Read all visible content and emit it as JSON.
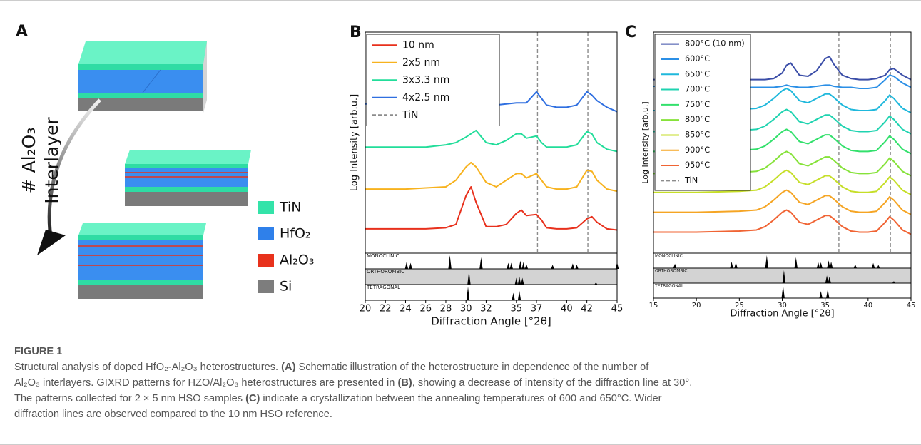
{
  "panel_a": {
    "label": "A",
    "arrow_label": [
      "# Al₂O₃",
      "Interlayer"
    ],
    "legend": [
      {
        "name": "TiN",
        "color": "#33e3a9"
      },
      {
        "name": "HfO₂",
        "color": "#2f80ea"
      },
      {
        "name": "Al₂O₃",
        "color": "#e8321c"
      },
      {
        "name": "Si",
        "color": "#7d7d7d"
      }
    ]
  },
  "chart_data": [
    {
      "type": "line",
      "panel_label": "B",
      "xlabel": "Diffraction Angle [°2θ]",
      "ylabel": "Log Intensity [arb.u.]",
      "xlim": [
        20,
        45
      ],
      "ylim": [
        0,
        10
      ],
      "xticks": [
        20,
        22,
        24,
        26,
        28,
        30,
        32,
        35,
        37,
        40,
        42,
        45
      ],
      "legend": "upper left",
      "x": [
        20,
        22,
        24,
        26,
        28,
        29,
        30,
        30.5,
        31,
        32,
        33,
        34,
        35,
        35.5,
        36,
        37,
        37.5,
        38,
        39,
        40,
        41,
        42,
        42.5,
        43,
        44,
        45
      ],
      "series": [
        {
          "name": "10 nm",
          "color": "#e8301c",
          "values": [
            1.1,
            1.1,
            1.1,
            1.1,
            1.15,
            1.3,
            2.6,
            3.0,
            2.3,
            1.2,
            1.2,
            1.3,
            1.8,
            1.95,
            1.7,
            1.75,
            1.5,
            1.15,
            1.1,
            1.1,
            1.15,
            1.55,
            1.65,
            1.4,
            1.1,
            1.05
          ]
        },
        {
          "name": "2x5 nm",
          "color": "#f7b21e",
          "values": [
            2.9,
            2.9,
            2.9,
            2.95,
            3.0,
            3.3,
            3.9,
            4.1,
            3.9,
            3.2,
            3.0,
            3.3,
            3.6,
            3.6,
            3.4,
            3.6,
            3.3,
            3.0,
            2.9,
            2.9,
            3.0,
            3.75,
            3.7,
            3.3,
            2.9,
            2.8
          ]
        },
        {
          "name": "3x3.3 nm",
          "color": "#22dd9a",
          "values": [
            4.8,
            4.8,
            4.8,
            4.8,
            4.9,
            5.0,
            5.25,
            5.4,
            5.55,
            5.0,
            4.9,
            5.1,
            5.4,
            5.4,
            5.2,
            5.3,
            5.0,
            4.8,
            4.8,
            4.8,
            4.9,
            5.5,
            5.4,
            5.0,
            4.7,
            4.6
          ]
        },
        {
          "name": "4x2.5 nm",
          "color": "#2f6fe0",
          "values": [
            6.75,
            6.75,
            6.75,
            6.75,
            6.75,
            6.75,
            6.75,
            6.75,
            6.75,
            6.75,
            6.7,
            6.75,
            6.8,
            6.8,
            6.8,
            7.3,
            7.0,
            6.7,
            6.6,
            6.6,
            6.7,
            7.3,
            7.15,
            6.9,
            6.6,
            6.4
          ]
        }
      ],
      "vlines": {
        "name": "TiN",
        "color": "#8c8c8c",
        "values": [
          37.1,
          42.1
        ]
      },
      "reference_patterns": [
        {
          "name": "MONOCLINIC",
          "positions": [
            24.1,
            24.5,
            28.4,
            31.5,
            34.2,
            34.5,
            35.4,
            35.7,
            36.0,
            38.6,
            40.6,
            41.0,
            45.0
          ],
          "heights": [
            0.5,
            0.45,
            1.0,
            0.85,
            0.45,
            0.45,
            0.6,
            0.5,
            0.35,
            0.3,
            0.4,
            0.3,
            0.5
          ]
        },
        {
          "name": "ORTHOROMBIC",
          "background": "#d3d3d3",
          "positions": [
            30.3,
            35.0,
            35.3,
            35.6,
            42.9
          ],
          "heights": [
            1.0,
            0.5,
            0.6,
            0.5,
            0.15
          ]
        },
        {
          "name": "TETRAGONAL",
          "positions": [
            30.2,
            34.7,
            35.3
          ],
          "heights": [
            1.0,
            0.55,
            0.7
          ]
        }
      ]
    },
    {
      "type": "line",
      "panel_label": "C",
      "xlabel": "Diffraction Angle [°2θ]",
      "ylabel": "Log Intensity [arb.u.]",
      "xlim": [
        15,
        45
      ],
      "ylim": [
        0,
        10
      ],
      "xticks": [
        15,
        20,
        25,
        30,
        35,
        40,
        45
      ],
      "legend": "upper left",
      "x": [
        15,
        20,
        25,
        27,
        28,
        29,
        30,
        30.5,
        31,
        32,
        33,
        34,
        35,
        35.5,
        36,
        37,
        38,
        39,
        40,
        41,
        42,
        42.5,
        43,
        44,
        45
      ],
      "series": [
        {
          "name": "800°C (10 nm)",
          "color": "#3b4ea8",
          "values": [
            7.85,
            7.85,
            7.85,
            7.85,
            7.85,
            7.9,
            8.15,
            8.5,
            8.6,
            8.05,
            8.0,
            8.25,
            8.8,
            8.9,
            8.55,
            8.05,
            7.9,
            7.85,
            7.85,
            7.9,
            8.05,
            8.3,
            8.35,
            8.05,
            7.85
          ]
        },
        {
          "name": "600°C",
          "color": "#2b8fe6",
          "values": [
            7.55,
            7.5,
            7.5,
            7.5,
            7.5,
            7.5,
            7.55,
            7.6,
            7.55,
            7.5,
            7.5,
            7.55,
            7.6,
            7.6,
            7.55,
            7.5,
            7.5,
            7.45,
            7.45,
            7.5,
            7.85,
            8.05,
            8.0,
            7.7,
            7.5
          ]
        },
        {
          "name": "650°C",
          "color": "#1fb8dc",
          "values": [
            6.45,
            6.45,
            6.5,
            6.55,
            6.7,
            7.0,
            7.35,
            7.45,
            7.35,
            6.9,
            6.8,
            7.0,
            7.2,
            7.2,
            7.05,
            6.7,
            6.5,
            6.45,
            6.45,
            6.5,
            6.9,
            7.15,
            7.0,
            6.55,
            6.35
          ]
        },
        {
          "name": "700°C",
          "color": "#1fd3b0",
          "values": [
            5.5,
            5.5,
            5.55,
            5.6,
            5.75,
            6.05,
            6.4,
            6.5,
            6.4,
            5.95,
            5.85,
            6.05,
            6.25,
            6.25,
            6.1,
            5.75,
            5.55,
            5.5,
            5.5,
            5.55,
            5.95,
            6.2,
            6.05,
            5.6,
            5.4
          ]
        },
        {
          "name": "750°C",
          "color": "#33e06c",
          "values": [
            4.6,
            4.6,
            4.65,
            4.7,
            4.85,
            5.15,
            5.5,
            5.6,
            5.5,
            5.05,
            4.95,
            5.15,
            5.35,
            5.35,
            5.2,
            4.85,
            4.65,
            4.6,
            4.6,
            4.65,
            5.05,
            5.3,
            5.15,
            4.7,
            4.5
          ]
        },
        {
          "name": "800°C",
          "color": "#86e23a",
          "values": [
            3.6,
            3.6,
            3.65,
            3.7,
            3.85,
            4.15,
            4.5,
            4.6,
            4.5,
            4.05,
            3.95,
            4.15,
            4.35,
            4.35,
            4.2,
            3.85,
            3.65,
            3.6,
            3.6,
            3.65,
            4.05,
            4.3,
            4.15,
            3.7,
            3.5
          ]
        },
        {
          "name": "850°C",
          "color": "#c6de28",
          "values": [
            2.75,
            2.75,
            2.8,
            2.85,
            3.0,
            3.3,
            3.65,
            3.75,
            3.65,
            3.2,
            3.1,
            3.3,
            3.5,
            3.5,
            3.35,
            3.0,
            2.8,
            2.75,
            2.75,
            2.8,
            3.2,
            3.45,
            3.3,
            2.85,
            2.65
          ]
        },
        {
          "name": "900°C",
          "color": "#f5a524",
          "values": [
            1.85,
            1.85,
            1.9,
            1.95,
            2.1,
            2.4,
            2.75,
            2.85,
            2.75,
            2.3,
            2.2,
            2.4,
            2.6,
            2.6,
            2.45,
            2.1,
            1.9,
            1.85,
            1.85,
            1.9,
            2.3,
            2.55,
            2.4,
            1.95,
            1.75
          ]
        },
        {
          "name": "950°C",
          "color": "#f06434",
          "values": [
            0.95,
            0.95,
            1.0,
            1.05,
            1.2,
            1.5,
            1.85,
            1.95,
            1.85,
            1.4,
            1.3,
            1.5,
            1.7,
            1.7,
            1.55,
            1.2,
            1.0,
            0.95,
            0.95,
            1.0,
            1.4,
            1.65,
            1.5,
            1.05,
            0.85
          ]
        }
      ],
      "vlines": {
        "name": "TiN",
        "color": "#8c8c8c",
        "values": [
          36.6,
          42.6
        ]
      },
      "reference_patterns": [
        {
          "name": "MONOCLINIC",
          "positions": [
            17.5,
            24.1,
            24.6,
            28.2,
            31.6,
            34.2,
            34.5,
            35.4,
            35.7,
            38.5,
            40.6,
            41.2
          ],
          "heights": [
            0.35,
            0.5,
            0.45,
            1.0,
            0.85,
            0.45,
            0.45,
            0.6,
            0.5,
            0.3,
            0.4,
            0.25
          ]
        },
        {
          "name": "ORTHOROMBIC",
          "background": "#d3d3d3",
          "positions": [
            30.2,
            35.2,
            35.5,
            43.0
          ],
          "heights": [
            1.0,
            0.6,
            0.5,
            0.15
          ]
        },
        {
          "name": "TETRAGONAL",
          "positions": [
            30.1,
            34.5,
            35.3
          ],
          "heights": [
            1.0,
            0.55,
            0.7
          ]
        }
      ]
    }
  ],
  "caption": {
    "figure_label": "FIGURE 1",
    "lines": [
      [
        {
          "text": "Structural analysis of doped HfO₂-Al₂O₃ heterostructures. "
        },
        {
          "text": "(A)",
          "bold": true
        },
        {
          "text": " Schematic illustration of the heterostructure in dependence of the number of"
        }
      ],
      [
        {
          "text": "Al₂O₃ interlayers. GIXRD patterns for HZO/Al₂O₃ heterostructures are presented in "
        },
        {
          "text": "(B)",
          "bold": true
        },
        {
          "text": ", showing a decrease of intensity of the diffraction line at 30°."
        }
      ],
      [
        {
          "text": "The patterns collected for 2 × 5 nm HSO samples "
        },
        {
          "text": "(C)",
          "bold": true
        },
        {
          "text": " indicate a crystallization between the annealing temperatures of 600 and 650°C. Wider"
        }
      ],
      [
        {
          "text": "diffraction lines are observed compared to the 10 nm HSO reference."
        }
      ]
    ]
  }
}
